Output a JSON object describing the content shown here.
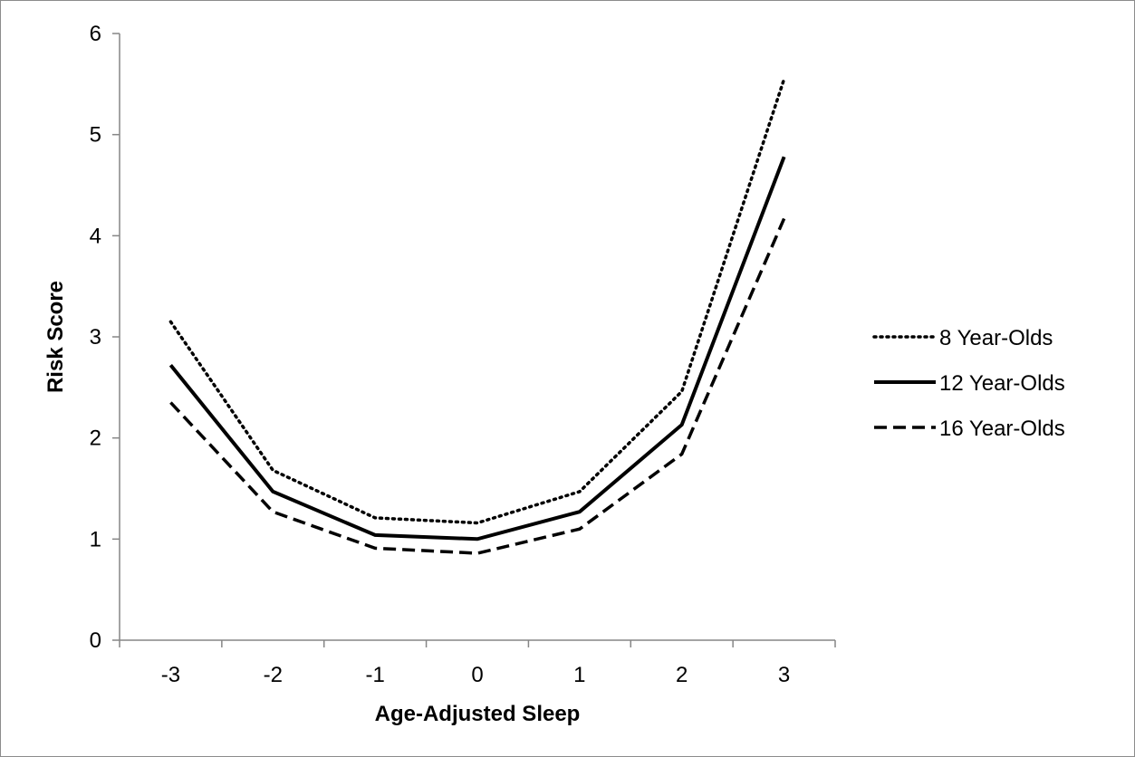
{
  "chart_data": {
    "type": "line",
    "title": "",
    "xlabel": "Age-Adjusted Sleep",
    "ylabel": "Risk Score",
    "x": [
      -3,
      -2,
      -1,
      0,
      1,
      2,
      3
    ],
    "x_tick_labels": [
      "-3",
      "-2",
      "-1",
      "0",
      "1",
      "2",
      "3"
    ],
    "y_tick_labels": [
      "0",
      "1",
      "2",
      "3",
      "4",
      "5",
      "6"
    ],
    "ylim": [
      0,
      6
    ],
    "grid": false,
    "legend_position": "right",
    "series": [
      {
        "name": "8 Year-Olds",
        "style": "dotted",
        "color": "#000000",
        "values": [
          3.15,
          1.68,
          1.21,
          1.16,
          1.47,
          2.46,
          5.55
        ]
      },
      {
        "name": "12 Year-Olds",
        "style": "solid",
        "color": "#000000",
        "values": [
          2.72,
          1.47,
          1.04,
          1.0,
          1.27,
          2.13,
          4.78
        ]
      },
      {
        "name": "16 Year-Olds",
        "style": "dashed",
        "color": "#000000",
        "values": [
          2.35,
          1.27,
          0.91,
          0.86,
          1.1,
          1.84,
          4.17
        ]
      }
    ]
  }
}
